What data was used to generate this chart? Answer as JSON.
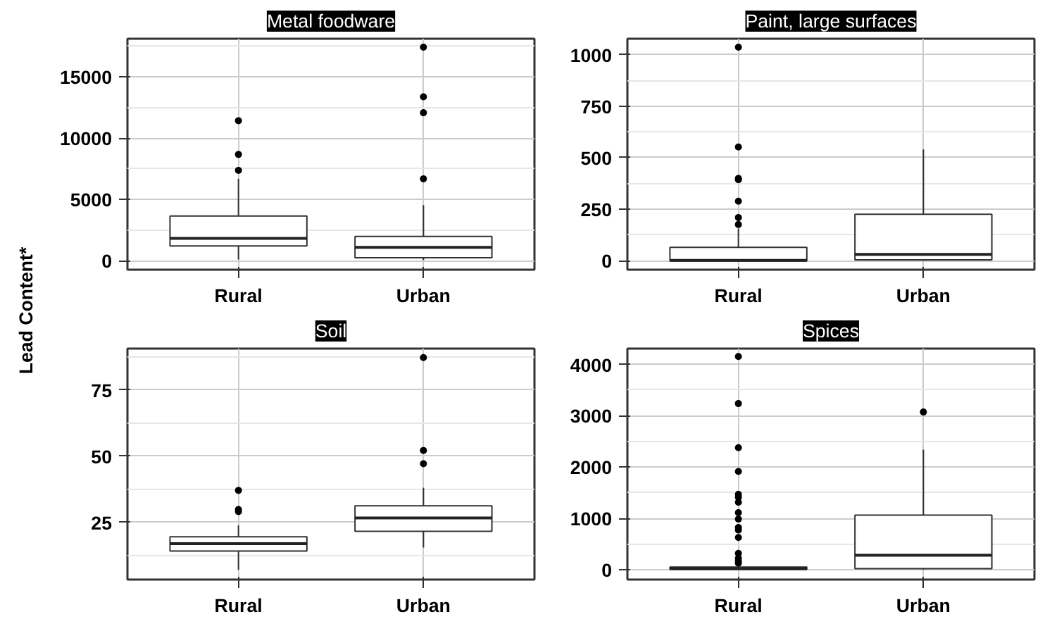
{
  "chart_data": [
    {
      "type": "box",
      "title": "Metal foodware",
      "ylabel": "Lead Content*",
      "categories": [
        "Rural",
        "Urban"
      ],
      "ylim": [
        -730,
        18120
      ],
      "yticks": [
        0,
        5000,
        10000,
        15000
      ],
      "grid": true,
      "boxes": [
        {
          "low": 100,
          "q1": 1216,
          "median": 1824,
          "q3": 3648,
          "high": 6690,
          "outliers": [
            7380,
            8675,
            11430
          ]
        },
        {
          "low": 50,
          "q1": 243,
          "median": 1095,
          "q3": 1986,
          "high": 4540,
          "outliers": [
            6690,
            12080,
            13380,
            17430
          ]
        }
      ]
    },
    {
      "type": "box",
      "title": "Paint, large surfaces",
      "categories": [
        "Rural",
        "Urban"
      ],
      "ylim": [
        -43,
        1077
      ],
      "yticks": [
        0,
        250,
        500,
        750,
        1000
      ],
      "grid": true,
      "boxes": [
        {
          "low": 0,
          "q1": 0,
          "median": 2,
          "q3": 65,
          "high": 157,
          "outliers": [
            176,
            210,
            289,
            393,
            400,
            552,
            1036
          ]
        },
        {
          "low": 0,
          "q1": 5,
          "median": 31,
          "q3": 226,
          "high": 540
        }
      ]
    },
    {
      "type": "box",
      "title": "Soil",
      "categories": [
        "Rural",
        "Urban"
      ],
      "ylim": [
        3.4,
        90.7
      ],
      "yticks": [
        25,
        50,
        75
      ],
      "grid": true,
      "boxes": [
        {
          "low": 7.1,
          "q1": 14.2,
          "median": 17.0,
          "q3": 19.6,
          "high": 23.9,
          "outliers": [
            29.1,
            29.9,
            37.1
          ]
        },
        {
          "low": 15.5,
          "q1": 21.6,
          "median": 26.7,
          "q3": 31.3,
          "high": 38.1,
          "outliers": [
            47.2,
            52.2,
            87.3
          ]
        }
      ]
    },
    {
      "type": "box",
      "title": "Spices",
      "categories": [
        "Rural",
        "Urban"
      ],
      "ylim": [
        -193,
        4309
      ],
      "yticks": [
        0,
        1000,
        2000,
        3000,
        4000
      ],
      "grid": true,
      "boxes": [
        {
          "low": 0,
          "q1": 5,
          "median": 20,
          "q3": 50,
          "high": 110,
          "outliers": [
            126,
            164,
            222,
            319,
            628,
            773,
            821,
            986,
            1111,
            1314,
            1411,
            1469,
            1913,
            2377,
            3237,
            4155
          ]
        },
        {
          "low": 0,
          "q1": 19,
          "median": 280,
          "q3": 1063,
          "high": 2338,
          "outliers": [
            3072
          ]
        }
      ]
    }
  ]
}
